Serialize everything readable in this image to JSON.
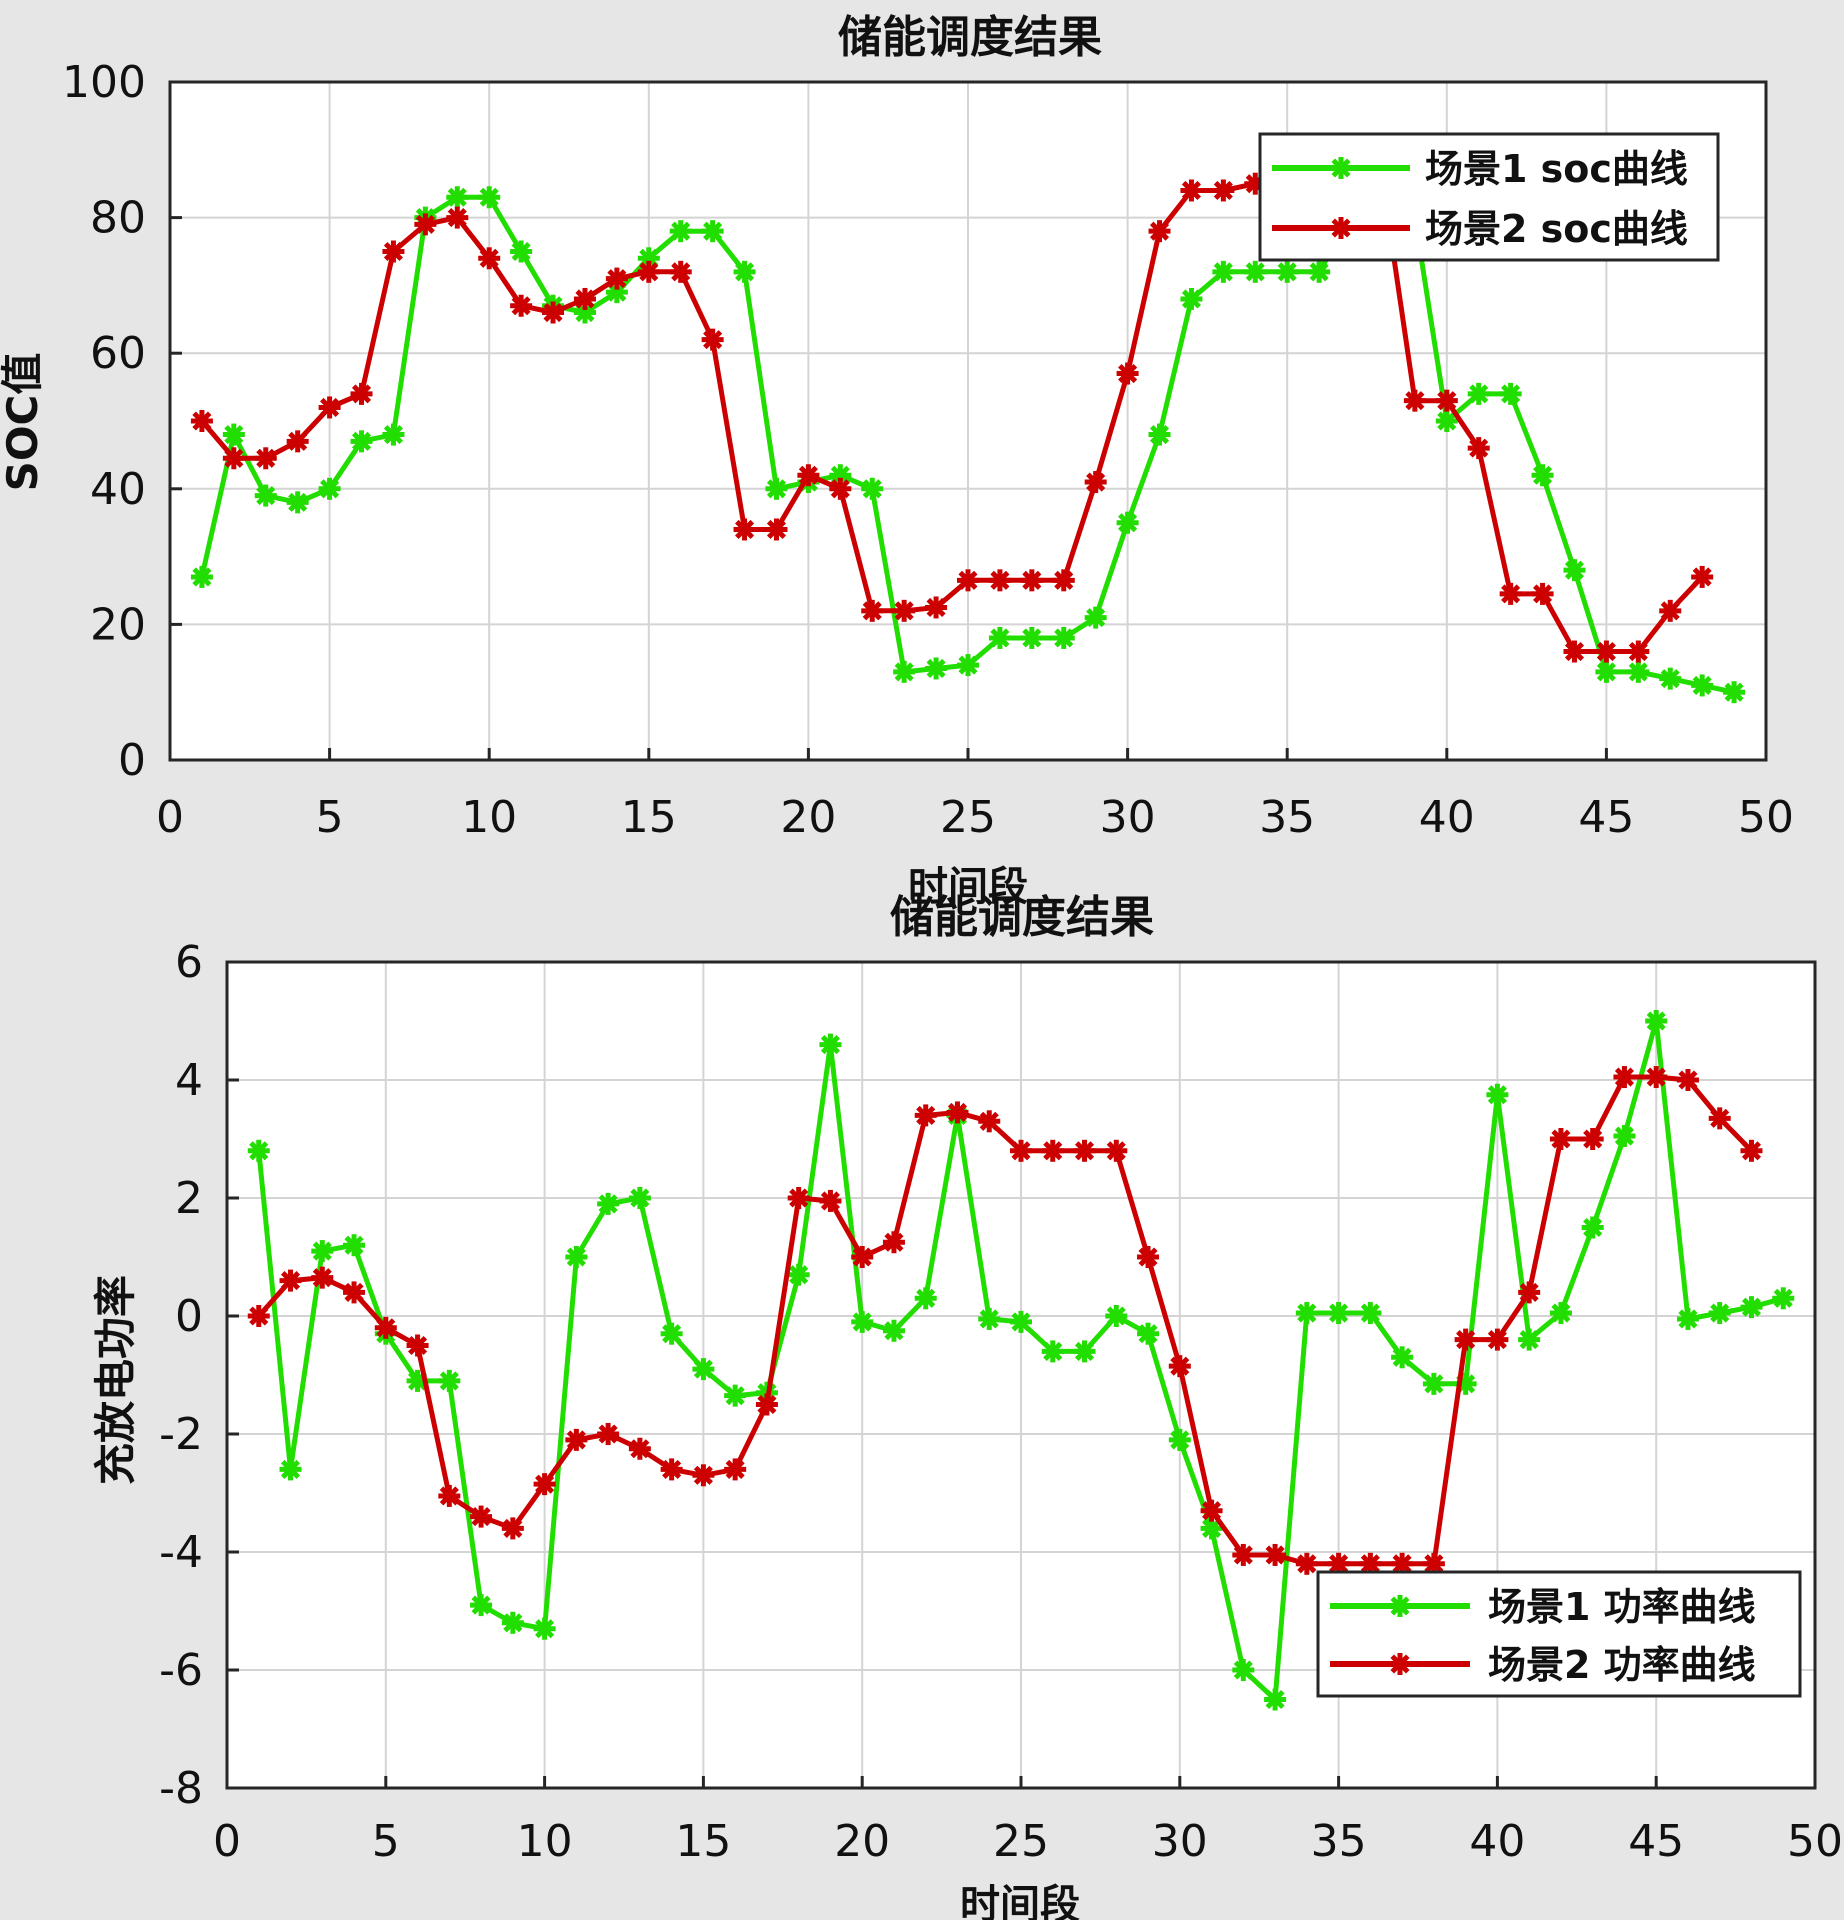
{
  "chart_data": [
    {
      "type": "line",
      "title": "储能调度结果",
      "xlabel": "时间段",
      "ylabel": "SOC值",
      "xlim": [
        0,
        50
      ],
      "ylim": [
        0,
        100
      ],
      "xticks": [
        0,
        5,
        10,
        15,
        20,
        25,
        30,
        35,
        40,
        45,
        50
      ],
      "yticks": [
        0,
        20,
        40,
        60,
        80,
        100
      ],
      "grid": true,
      "legend_position": "top-right",
      "series": [
        {
          "name": "场景1 soc曲线",
          "color": "#22dd00",
          "marker": "asterisk",
          "x": [
            1,
            2,
            3,
            4,
            5,
            6,
            7,
            8,
            9,
            10,
            11,
            12,
            13,
            14,
            15,
            16,
            17,
            18,
            19,
            20,
            21,
            22,
            23,
            24,
            25,
            26,
            27,
            28,
            29,
            30,
            31,
            32,
            33,
            34,
            35,
            36,
            37,
            38,
            39,
            40,
            41,
            42,
            43,
            44,
            45,
            46,
            47,
            48,
            49
          ],
          "values": [
            27,
            48,
            39,
            38,
            40,
            47,
            48,
            80,
            83,
            83,
            75,
            67,
            66,
            69,
            74,
            78,
            78,
            72,
            40,
            41,
            42,
            40,
            13,
            13.5,
            14,
            18,
            18,
            18,
            21,
            35,
            48,
            68,
            72,
            72,
            72,
            72,
            80,
            80,
            80,
            50,
            54,
            54,
            42,
            28,
            13,
            13,
            12,
            11,
            10
          ]
        },
        {
          "name": "场景2 soc曲线",
          "color": "#cc0000",
          "marker": "asterisk",
          "x": [
            1,
            2,
            3,
            4,
            5,
            6,
            7,
            8,
            9,
            10,
            11,
            12,
            13,
            14,
            15,
            16,
            17,
            18,
            19,
            20,
            21,
            22,
            23,
            24,
            25,
            26,
            27,
            28,
            29,
            30,
            31,
            32,
            33,
            34,
            35,
            36,
            37,
            38,
            39,
            40,
            41,
            42,
            43,
            44,
            45,
            46,
            47,
            48
          ],
          "values": [
            50,
            44.5,
            44.5,
            47,
            52,
            54,
            75,
            79,
            80,
            74,
            67,
            66,
            68,
            71,
            72,
            72,
            62,
            34,
            34,
            42,
            40,
            22,
            22,
            22.5,
            26.5,
            26.5,
            26.5,
            26.5,
            41,
            57,
            78,
            84,
            84,
            85,
            85,
            85,
            85,
            85,
            53,
            53,
            46,
            24.5,
            24.5,
            16,
            16,
            16,
            22,
            27
          ]
        }
      ]
    },
    {
      "type": "line",
      "title": "储能调度结果",
      "xlabel": "时间段",
      "ylabel": "充放电功率",
      "xlim": [
        0,
        50
      ],
      "ylim": [
        -8,
        6
      ],
      "xticks": [
        0,
        5,
        10,
        15,
        20,
        25,
        30,
        35,
        40,
        45,
        50
      ],
      "yticks": [
        -8,
        -6,
        -4,
        -2,
        0,
        2,
        4,
        6
      ],
      "grid": true,
      "legend_position": "bottom-right",
      "series": [
        {
          "name": "场景1 功率曲线",
          "color": "#22dd00",
          "marker": "asterisk",
          "x": [
            1,
            2,
            3,
            4,
            5,
            6,
            7,
            8,
            9,
            10,
            11,
            12,
            13,
            14,
            15,
            16,
            17,
            18,
            19,
            20,
            21,
            22,
            23,
            24,
            25,
            26,
            27,
            28,
            29,
            30,
            31,
            32,
            33,
            34,
            35,
            36,
            37,
            38,
            39,
            40,
            41,
            42,
            43,
            44,
            45,
            46,
            47,
            48,
            49
          ],
          "values": [
            2.8,
            -2.6,
            1.1,
            1.2,
            -0.3,
            -1.1,
            -1.1,
            -4.9,
            -5.2,
            -5.3,
            1.0,
            1.9,
            2.0,
            -0.3,
            -0.9,
            -1.35,
            -1.3,
            0.7,
            4.6,
            -0.1,
            -0.25,
            0.3,
            3.4,
            -0.05,
            -0.1,
            -0.6,
            -0.6,
            0.0,
            -0.3,
            -2.1,
            -3.6,
            -6.0,
            -6.5,
            0.05,
            0.05,
            0.05,
            -0.7,
            -1.15,
            -1.15,
            3.75,
            -0.4,
            0.05,
            1.5,
            3.05,
            5.0,
            -0.05,
            0.05,
            0.15,
            0.3
          ]
        },
        {
          "name": "场景2 功率曲线",
          "color": "#cc0000",
          "marker": "asterisk",
          "x": [
            1,
            2,
            3,
            4,
            5,
            6,
            7,
            8,
            9,
            10,
            11,
            12,
            13,
            14,
            15,
            16,
            17,
            18,
            19,
            20,
            21,
            22,
            23,
            24,
            25,
            26,
            27,
            28,
            29,
            30,
            31,
            32,
            33,
            34,
            35,
            36,
            37,
            38,
            39,
            40,
            41,
            42,
            43,
            44,
            45,
            46,
            47,
            48
          ],
          "values": [
            0,
            0.6,
            0.65,
            0.4,
            -0.2,
            -0.5,
            -3.05,
            -3.4,
            -3.6,
            -2.85,
            -2.1,
            -2.0,
            -2.25,
            -2.6,
            -2.7,
            -2.6,
            -1.5,
            2.0,
            1.95,
            1.0,
            1.25,
            3.4,
            3.45,
            3.3,
            2.8,
            2.8,
            2.8,
            2.8,
            1.0,
            -0.85,
            -3.3,
            -4.05,
            -4.05,
            -4.2,
            -4.2,
            -4.2,
            -4.2,
            -4.2,
            -0.4,
            -0.4,
            0.4,
            3.0,
            3.0,
            4.05,
            4.05,
            4.0,
            3.35,
            2.8
          ]
        }
      ]
    }
  ]
}
